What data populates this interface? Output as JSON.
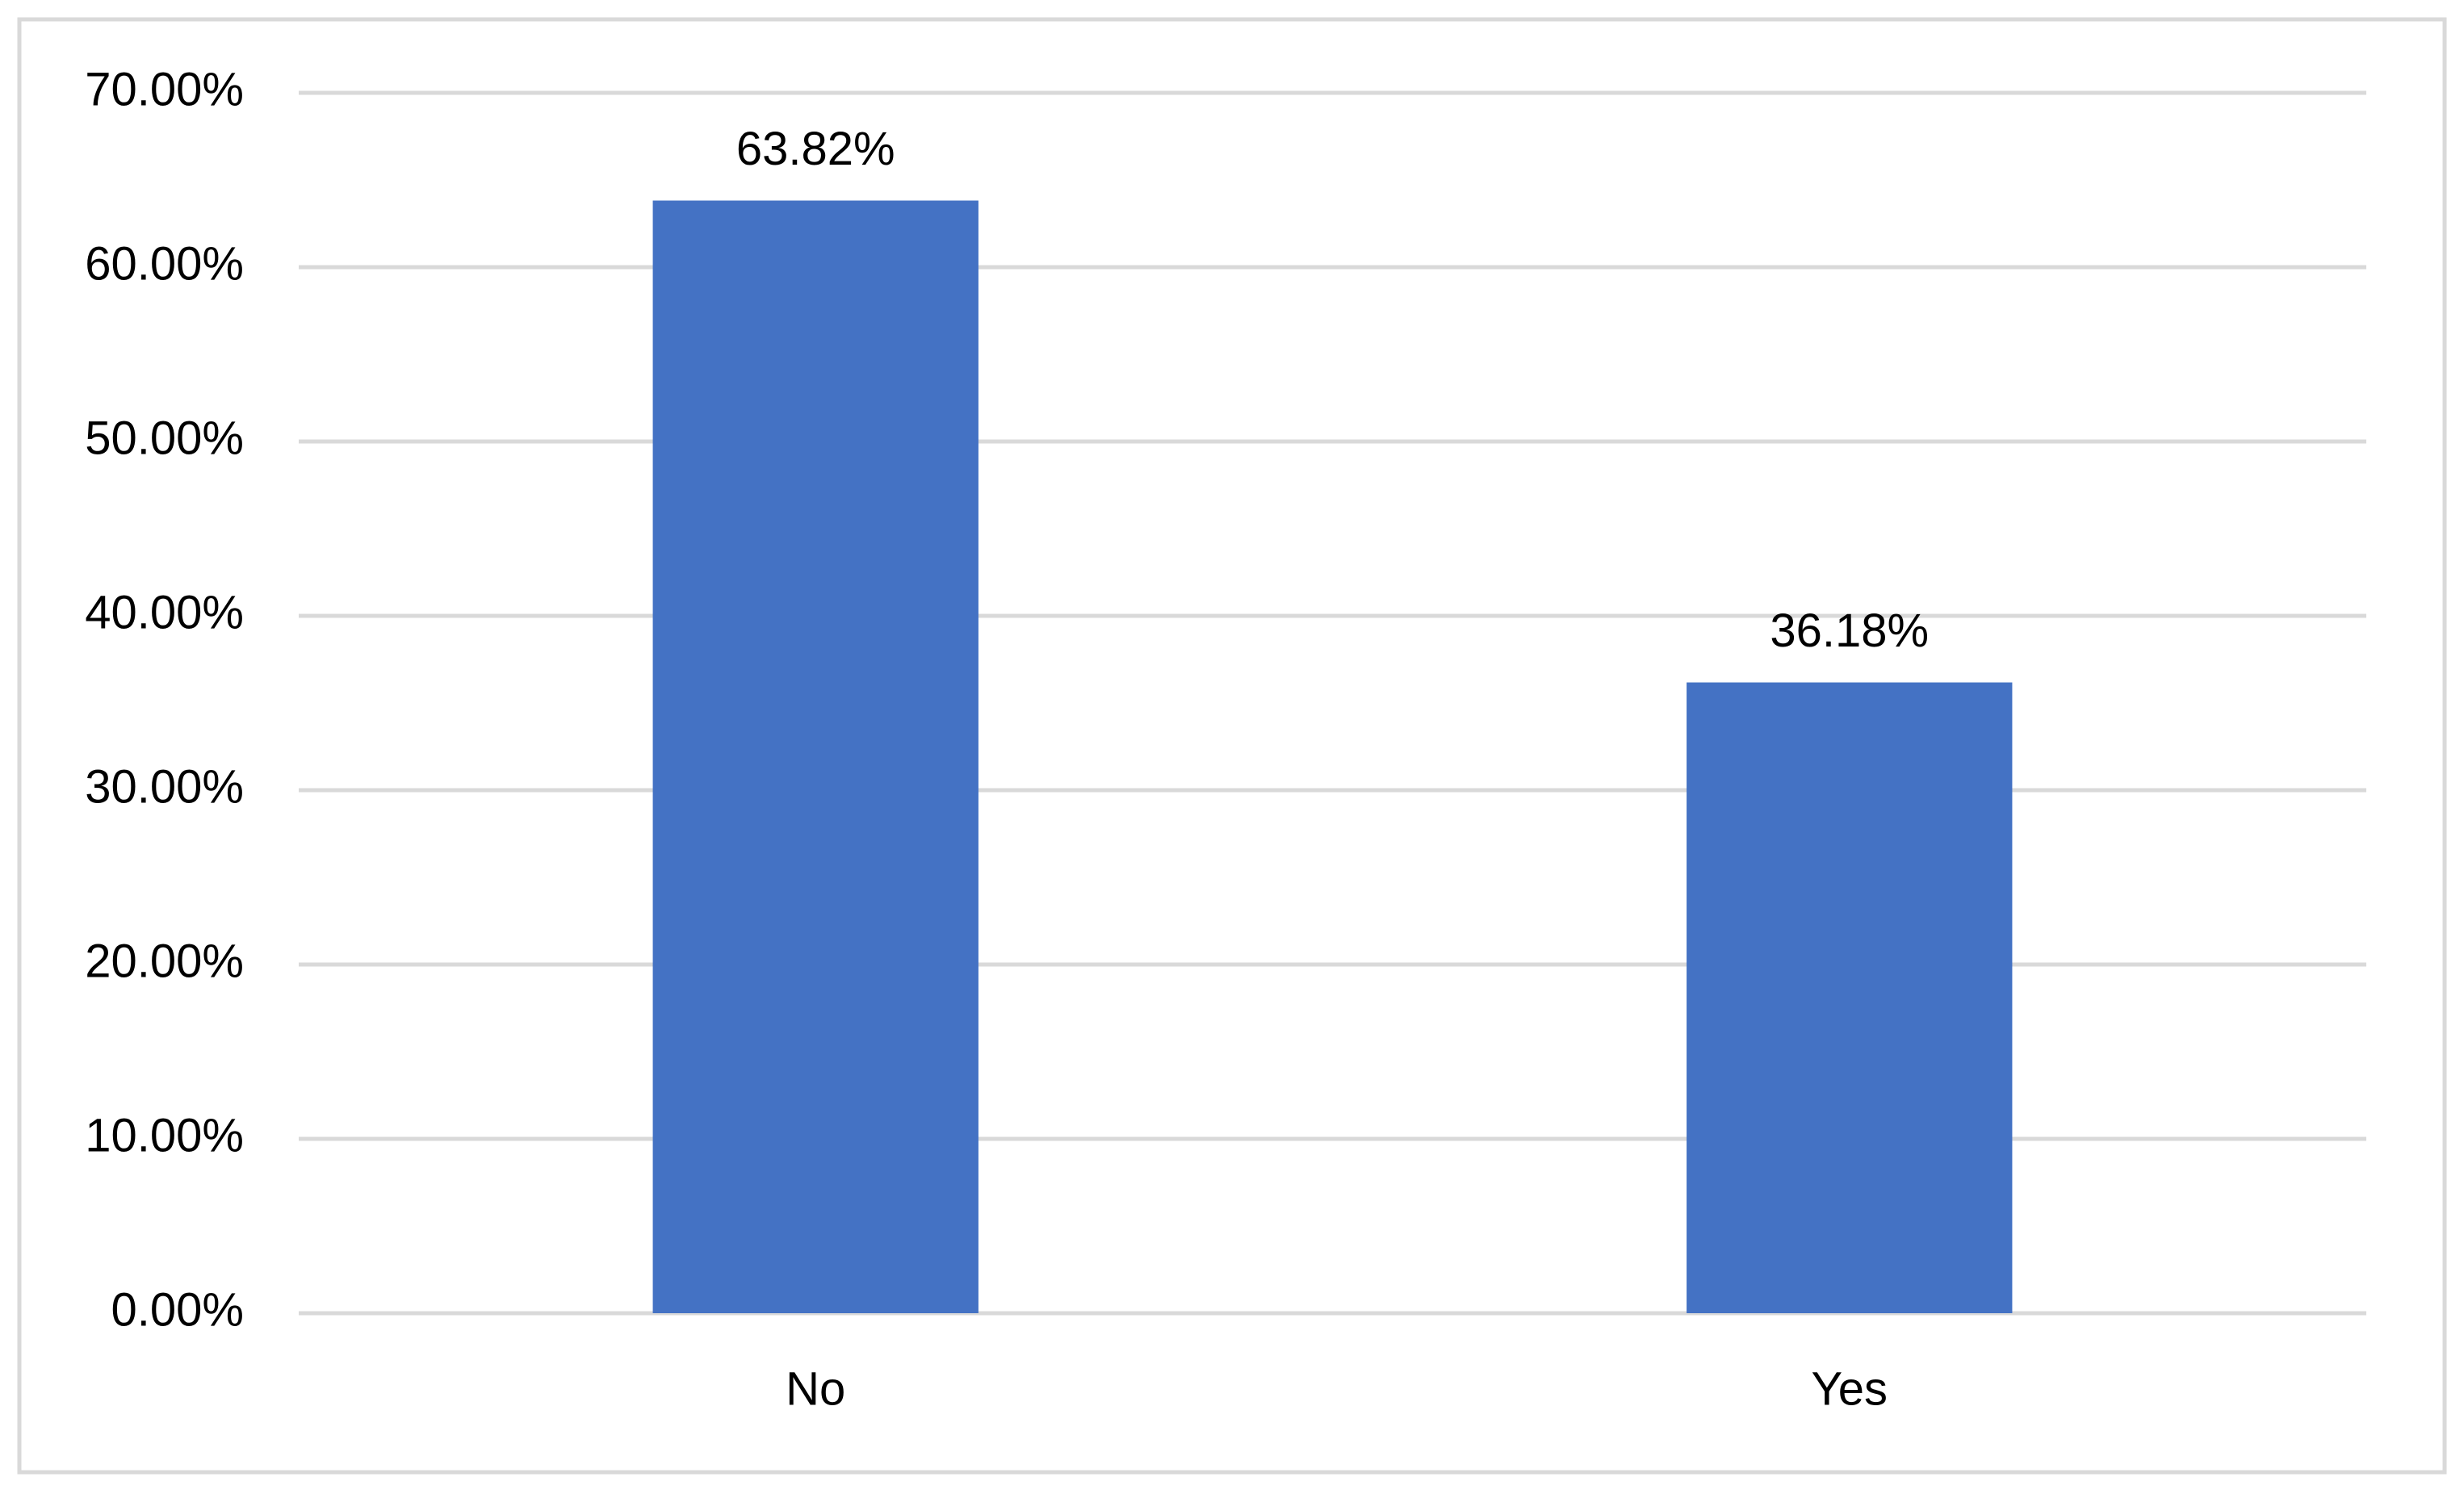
{
  "chart_data": {
    "type": "bar",
    "categories": [
      "No",
      "Yes"
    ],
    "values": [
      63.82,
      36.18
    ],
    "value_labels": [
      "63.82%",
      "36.18%"
    ],
    "color": "#4472c4",
    "ylim": [
      0,
      70
    ],
    "yticks": [
      {
        "value": 0,
        "label": "0.00%"
      },
      {
        "value": 10,
        "label": "10.00%"
      },
      {
        "value": 20,
        "label": "20.00%"
      },
      {
        "value": 30,
        "label": "30.00%"
      },
      {
        "value": 40,
        "label": "40.00%"
      },
      {
        "value": 50,
        "label": "50.00%"
      },
      {
        "value": 60,
        "label": "60.00%"
      },
      {
        "value": 70,
        "label": "70.00%"
      }
    ],
    "grid": true
  }
}
